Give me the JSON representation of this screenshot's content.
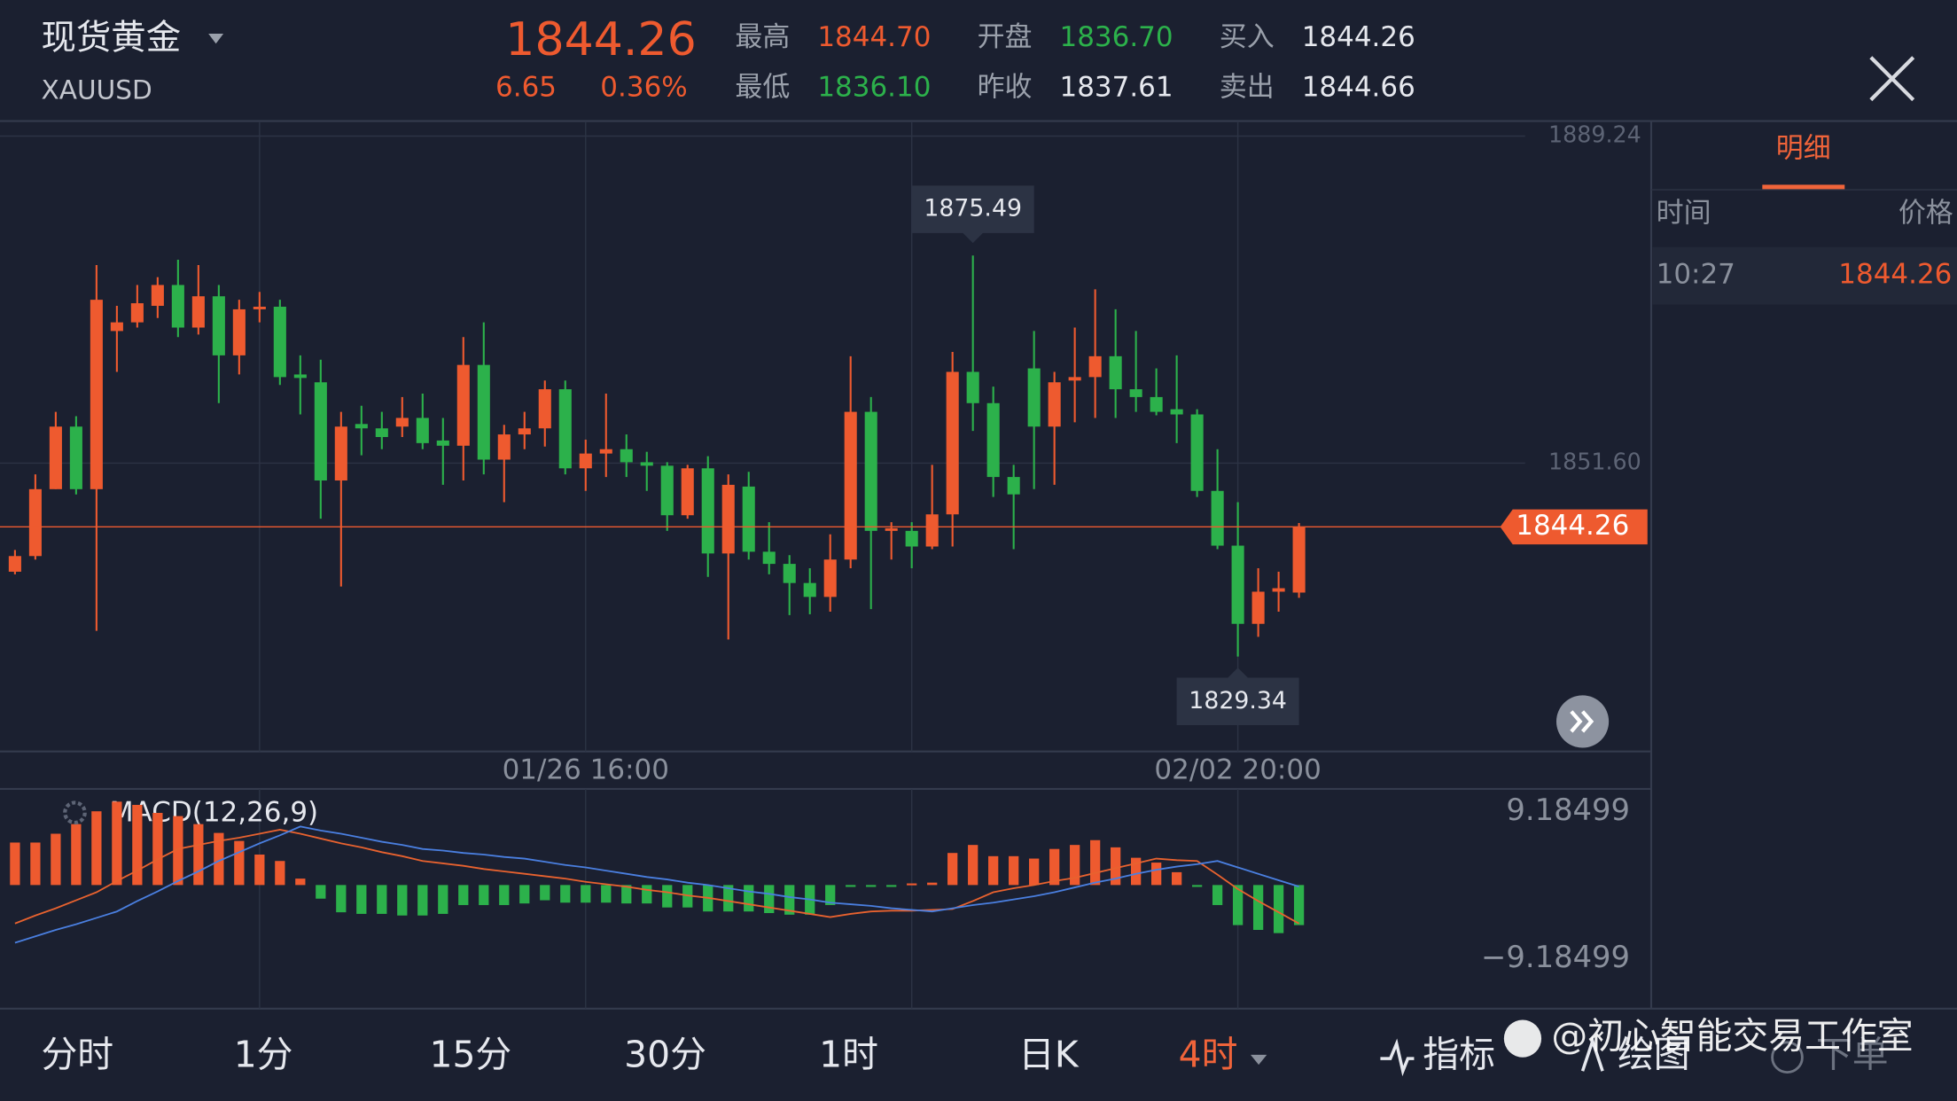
{
  "header": {
    "name": "现货黄金",
    "symbol": "XAUUSD",
    "price": "1844.26",
    "change": "6.65",
    "change_pct": "0.36%",
    "stats": [
      {
        "label": "最高",
        "value": "1844.70"
      },
      {
        "label": "最低",
        "value": "1836.10"
      },
      {
        "label": "开盘",
        "value": "1836.70"
      },
      {
        "label": "昨收",
        "value": "1837.61"
      },
      {
        "label": "买入",
        "value": "1844.26"
      },
      {
        "label": "卖出",
        "value": "1844.66"
      }
    ]
  },
  "side_panel": {
    "tab": "明细",
    "columns": [
      "时间",
      "价格"
    ],
    "rows": [
      [
        "10:27",
        "1844.26"
      ]
    ]
  },
  "tabs": [
    "分时",
    "1分",
    "15分",
    "30分",
    "1时",
    "日K",
    "4时",
    "指标",
    "绘图",
    "下单"
  ],
  "watermark": "@初心智能交易工作室",
  "chart_data": [
    {
      "type": "candlestick",
      "up_color": "#ee5a2f",
      "down_color": "#2cb14b",
      "grid": true,
      "ylim": [
        1818.41,
        1890.82
      ],
      "yticks": [
        1889.24,
        {
          "value": 1851.6,
          "label": "1851.60"
        }
      ],
      "x": [
        null,
        null,
        null,
        null,
        null,
        null,
        null,
        null,
        null,
        null,
        null,
        null,
        null,
        null,
        null,
        null,
        null,
        null,
        null,
        null,
        null,
        null,
        null,
        null,
        null,
        null,
        null,
        null,
        "01/26 16:00",
        null,
        null,
        null,
        null,
        null,
        null,
        null,
        null,
        null,
        null,
        null,
        null,
        null,
        null,
        null,
        null,
        null,
        null,
        null,
        null,
        null,
        null,
        null,
        null,
        null,
        null,
        null,
        null,
        null,
        null,
        null,
        "02/02 20:00",
        null,
        null,
        null
      ],
      "open": [
        1839.1,
        1840.9,
        1848.6,
        1855.8,
        1848.6,
        1866.8,
        1867.8,
        1869.7,
        1872.1,
        1867.2,
        1870.8,
        1864.0,
        1869.3,
        1869.6,
        1861.8,
        1860.9,
        1849.6,
        1856.1,
        1855.6,
        1855.8,
        1856.8,
        1854.2,
        1853.6,
        1862.9,
        1852.0,
        1854.9,
        1855.6,
        1860.1,
        1851.0,
        1852.7,
        1853.2,
        1851.7,
        1851.3,
        1845.6,
        1851.0,
        1841.2,
        1848.9,
        1841.4,
        1840.0,
        1837.8,
        1836.2,
        1840.5,
        1857.5,
        1843.8,
        1843.8,
        1842.0,
        1845.7,
        1862.1,
        1858.5,
        1850.0,
        1862.5,
        1855.8,
        1861.1,
        1861.5,
        1863.9,
        1860.1,
        1859.2,
        1857.8,
        1857.2,
        1848.4,
        1842.1,
        1833.1,
        1836.8,
        1836.7
      ],
      "high": [
        1841.6,
        1850.3,
        1857.5,
        1857.0,
        1874.4,
        1869.7,
        1872.1,
        1873.0,
        1875.0,
        1874.4,
        1872.1,
        1870.4,
        1871.3,
        1870.4,
        1864.0,
        1863.5,
        1857.5,
        1858.2,
        1857.5,
        1859.2,
        1859.6,
        1856.8,
        1866.1,
        1867.8,
        1856.0,
        1857.5,
        1861.1,
        1861.1,
        1854.3,
        1859.6,
        1854.9,
        1852.9,
        1851.7,
        1851.4,
        1852.4,
        1850.3,
        1850.6,
        1844.8,
        1841.0,
        1839.5,
        1843.4,
        1863.9,
        1859.2,
        1844.8,
        1844.8,
        1851.4,
        1864.4,
        1875.49,
        1860.4,
        1851.4,
        1866.8,
        1862.1,
        1867.2,
        1871.6,
        1869.3,
        1866.8,
        1862.5,
        1864.0,
        1857.8,
        1853.2,
        1847.1,
        1839.5,
        1839.1,
        1844.7
      ],
      "low": [
        1838.8,
        1840.5,
        1848.6,
        1848.0,
        1832.3,
        1862.1,
        1867.2,
        1868.3,
        1866.1,
        1866.4,
        1858.5,
        1861.8,
        1867.8,
        1860.6,
        1857.2,
        1845.2,
        1837.4,
        1852.5,
        1853.2,
        1854.6,
        1853.2,
        1849.1,
        1849.6,
        1850.3,
        1847.1,
        1853.2,
        1853.5,
        1850.3,
        1848.4,
        1850.0,
        1850.0,
        1848.4,
        1843.8,
        1845.2,
        1838.5,
        1831.3,
        1840.5,
        1838.8,
        1834.1,
        1834.2,
        1834.5,
        1839.5,
        1834.8,
        1840.5,
        1839.5,
        1841.7,
        1842.0,
        1855.3,
        1847.7,
        1841.7,
        1848.6,
        1849.1,
        1856.3,
        1856.8,
        1856.8,
        1857.5,
        1857.1,
        1853.9,
        1847.7,
        1841.7,
        1829.34,
        1831.6,
        1834.5,
        1836.1
      ],
      "close": [
        1840.9,
        1848.6,
        1855.8,
        1848.6,
        1870.4,
        1867.8,
        1870.0,
        1872.1,
        1867.2,
        1870.8,
        1864.0,
        1869.3,
        1869.6,
        1861.5,
        1861.4,
        1849.6,
        1855.8,
        1855.6,
        1854.6,
        1856.8,
        1853.9,
        1853.6,
        1862.9,
        1852.0,
        1854.9,
        1855.6,
        1860.1,
        1851.0,
        1852.7,
        1853.2,
        1851.7,
        1851.3,
        1845.6,
        1851.0,
        1841.2,
        1849.1,
        1841.4,
        1840.0,
        1837.8,
        1836.2,
        1840.5,
        1857.5,
        1843.8,
        1844.1,
        1842.0,
        1845.7,
        1862.1,
        1858.5,
        1850.0,
        1848.0,
        1855.8,
        1860.9,
        1861.5,
        1863.9,
        1860.1,
        1859.2,
        1857.5,
        1857.2,
        1848.4,
        1842.1,
        1833.1,
        1836.8,
        1837.2,
        1844.26
      ]
    },
    {
      "type": "macd",
      "title": "MACD(12,26,9)",
      "up_color": "#ee5a2f",
      "down_color": "#2cb14b",
      "ylim": [
        -15.42,
        11.99
      ],
      "yticks": [
        9.18499,
        {
          "value": -9.18499,
          "label": "−9.18499"
        }
      ],
      "histogram": [
        5.3,
        5.3,
        6.4,
        7.6,
        9.2,
        10.4,
        10.0,
        9.0,
        8.6,
        7.6,
        6.5,
        5.5,
        3.8,
        3.0,
        0.8,
        -1.7,
        -3.4,
        -3.6,
        -3.6,
        -3.8,
        -3.8,
        -3.6,
        -2.5,
        -2.5,
        -2.5,
        -2.3,
        -1.9,
        -2.2,
        -2.2,
        -2.2,
        -2.3,
        -2.3,
        -2.8,
        -2.8,
        -3.3,
        -3.3,
        -3.3,
        -3.5,
        -3.7,
        -3.7,
        -2.5,
        -0.2,
        -0.2,
        -0.2,
        0.2,
        0.3,
        4.0,
        5.0,
        3.6,
        3.6,
        3.3,
        4.5,
        5.0,
        5.6,
        4.7,
        3.4,
        2.8,
        1.6,
        -0.2,
        -2.5,
        -5.0,
        -5.6,
        -6.0,
        -5.0
      ],
      "series": [
        {
          "color": "#e8622f",
          "values": [
            -4.8,
            -3.8,
            -2.9,
            -1.9,
            -0.9,
            0.5,
            1.8,
            3.2,
            4.5,
            5.0,
            5.5,
            5.9,
            6.4,
            6.9,
            6.4,
            5.8,
            5.2,
            4.7,
            4.1,
            3.6,
            3.0,
            2.7,
            2.4,
            2.0,
            1.7,
            1.4,
            1.1,
            0.8,
            0.4,
            0.1,
            -0.2,
            -0.6,
            -0.9,
            -1.3,
            -1.6,
            -2.0,
            -2.4,
            -2.8,
            -3.2,
            -3.6,
            -4.0,
            -3.6,
            -3.3,
            -3.2,
            -3.2,
            -3.1,
            -3.0,
            -2.0,
            -0.9,
            -0.4,
            0.0,
            0.5,
            0.9,
            1.5,
            2.1,
            2.7,
            3.3,
            3.1,
            3.0,
            1.3,
            -0.5,
            -2.0,
            -3.4,
            -4.8
          ]
        },
        {
          "color": "#4a7fe0",
          "values": [
            -7.2,
            -6.4,
            -5.6,
            -4.9,
            -4.1,
            -3.3,
            -2.0,
            -0.8,
            0.5,
            1.7,
            3.0,
            4.1,
            5.2,
            6.2,
            7.3,
            6.8,
            6.4,
            5.9,
            5.4,
            5.0,
            4.5,
            4.3,
            4.0,
            3.8,
            3.5,
            3.3,
            2.9,
            2.5,
            2.2,
            1.8,
            1.4,
            1.0,
            0.7,
            0.3,
            0.0,
            -0.4,
            -0.8,
            -1.1,
            -1.5,
            -1.8,
            -2.2,
            -2.4,
            -2.6,
            -2.9,
            -3.1,
            -3.3,
            -2.9,
            -2.5,
            -2.2,
            -1.8,
            -1.4,
            -0.9,
            -0.3,
            0.3,
            0.8,
            1.4,
            1.9,
            2.3,
            2.6,
            3.0,
            2.2,
            1.4,
            0.6,
            -0.2
          ]
        }
      ]
    }
  ]
}
